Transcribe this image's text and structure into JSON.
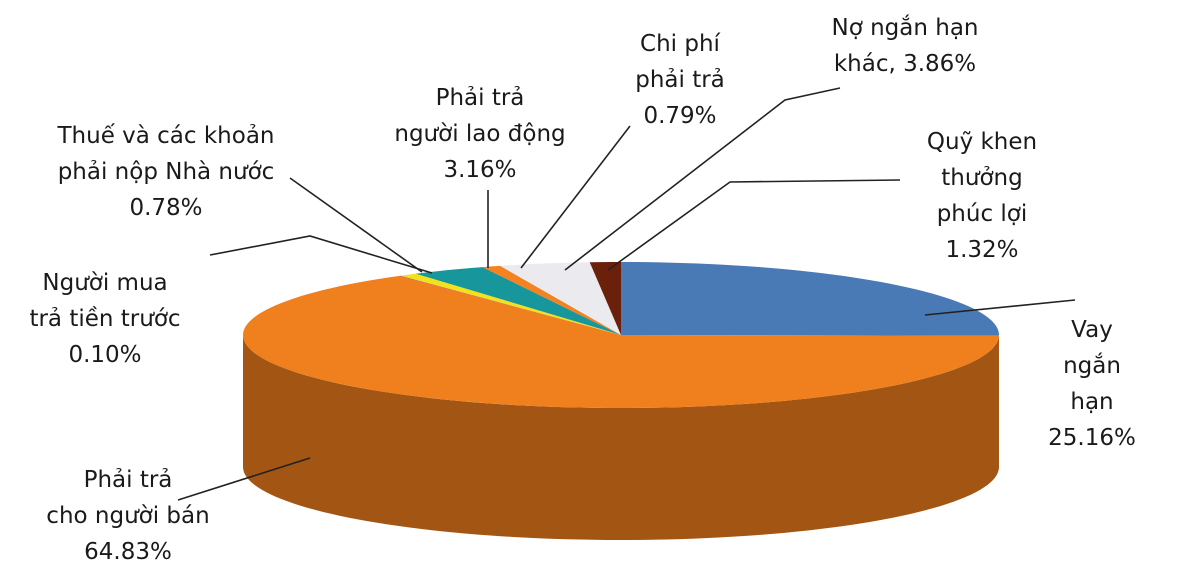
{
  "chart_data": {
    "type": "pie3d",
    "categories": [
      "Vay ngắn hạn",
      "Phải trả\ncho người bán",
      "Người mua\ntrả tiền trước",
      "Thuế và các khoản\nphải nộp Nhà nước",
      "Phải trả\nngười lao động",
      "Chi phí\nphải trả",
      "Nợ ngắn hạn\nkhác,",
      "Quỹ khen\nthưởng\nphúc lợi"
    ],
    "values": [
      25.16,
      64.83,
      0.1,
      0.78,
      3.16,
      0.79,
      3.86,
      1.32
    ],
    "value_labels": [
      "25.16%",
      "64.83%",
      "0.10%",
      "0.78%",
      "3.16%",
      "0.79%",
      "3.86%",
      "1.32%"
    ],
    "colors": [
      "#4a7ab5",
      "#f07f1e",
      "#c0504d",
      "#f2e21c",
      "#17969c",
      "#f58220",
      "#ebebef",
      "#6b200b"
    ]
  }
}
